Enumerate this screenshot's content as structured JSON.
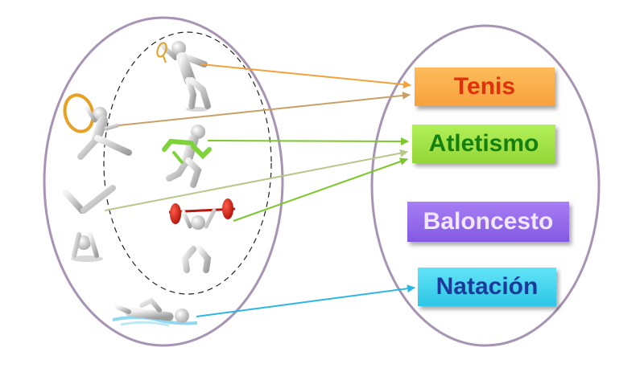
{
  "diagram": {
    "sports": [
      {
        "id": "tenis",
        "label": "Tenis",
        "color": "#f7a13a",
        "text_color": "#e0300c"
      },
      {
        "id": "atletismo",
        "label": "Atletismo",
        "color": "#94d73a",
        "text_color": "#16800f"
      },
      {
        "id": "baloncesto",
        "label": "Baloncesto",
        "color": "#8459e4",
        "text_color": "#f0e7ff"
      },
      {
        "id": "natacion",
        "label": "Natación",
        "color": "#2cc6e6",
        "text_color": "#1c3a9a"
      }
    ],
    "figures": [
      {
        "name": "tennis-player-icon",
        "maps_to": "tenis"
      },
      {
        "name": "rhythmic-gymnast-icon",
        "maps_to": "tenis"
      },
      {
        "name": "runner-icon",
        "maps_to": "atletismo"
      },
      {
        "name": "handstand-gymnast-icon",
        "maps_to": "atletismo"
      },
      {
        "name": "weightlifter-icon",
        "maps_to": "atletismo"
      },
      {
        "name": "swimmer-icon",
        "maps_to": "natacion"
      }
    ],
    "ellipse_color": "#a793b3",
    "arrow_colors": {
      "tenis": "#f2a23c",
      "gymnast_to_tenis": "#c9a066",
      "atletismo": "#7cc72a",
      "gymnast_to_atletismo": "#b6c88a",
      "natacion": "#2bb6e6"
    }
  }
}
